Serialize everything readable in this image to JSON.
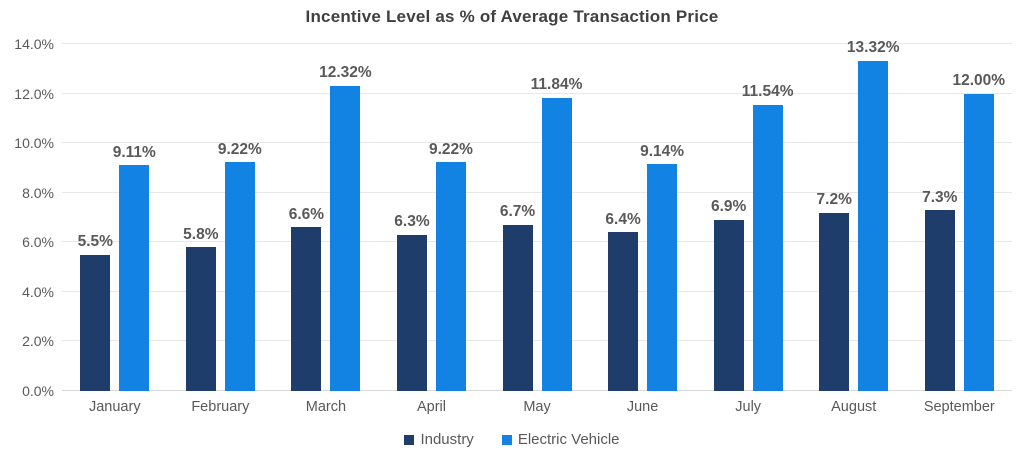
{
  "title": "Incentive Level as % of Average Transaction Price",
  "colors": {
    "industry": "#1f3d6b",
    "electric_vehicle": "#1283e2",
    "gridline": "#e8e8e8",
    "baseline": "#d9d9d9",
    "title_text": "#404040",
    "label_text": "#595959"
  },
  "chart_data": {
    "type": "bar",
    "title": "Incentive Level as % of Average Transaction Price",
    "categories": [
      "January",
      "February",
      "March",
      "April",
      "May",
      "June",
      "July",
      "August",
      "September"
    ],
    "series": [
      {
        "name": "Industry",
        "color": "#1f3d6b",
        "values": [
          5.5,
          5.8,
          6.6,
          6.3,
          6.7,
          6.4,
          6.9,
          7.2,
          7.3
        ],
        "labels": [
          "5.5%",
          "5.8%",
          "6.6%",
          "6.3%",
          "6.7%",
          "6.4%",
          "6.9%",
          "7.2%",
          "7.3%"
        ]
      },
      {
        "name": "Electric Vehicle",
        "color": "#1283e2",
        "values": [
          9.11,
          9.22,
          12.32,
          9.22,
          11.84,
          9.14,
          11.54,
          13.32,
          12.0
        ],
        "labels": [
          "9.11%",
          "9.22%",
          "12.32%",
          "9.22%",
          "11.84%",
          "9.14%",
          "11.54%",
          "13.32%",
          "12.00%"
        ]
      }
    ],
    "xlabel": "",
    "ylabel": "",
    "ylim": [
      0,
      14
    ],
    "ytick_step": 2,
    "ytick_labels": [
      "0.0%",
      "2.0%",
      "4.0%",
      "6.0%",
      "8.0%",
      "10.0%",
      "12.0%",
      "14.0%"
    ],
    "grid": true,
    "legend_position": "bottom"
  }
}
